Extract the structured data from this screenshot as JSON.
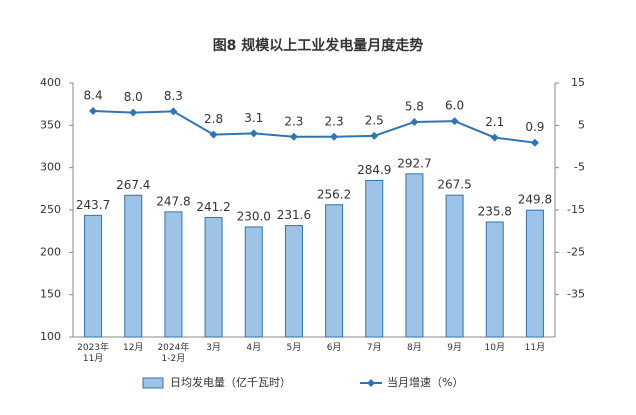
{
  "chart_data": {
    "type": "bar-line",
    "title": "图8  规模以上工业发电量月度走势",
    "categories": [
      "2023年\n11月",
      "12月",
      "2024年\n1-2月",
      "3月",
      "4月",
      "5月",
      "6月",
      "7月",
      "8月",
      "9月",
      "10月",
      "11月"
    ],
    "series": [
      {
        "name": "日均发电量（亿千瓦时）",
        "type": "bar",
        "color": "#9dc3e6",
        "edge": "#2e75b6",
        "values": [
          243.7,
          267.4,
          247.8,
          241.2,
          230.0,
          231.6,
          256.2,
          284.9,
          292.7,
          267.5,
          235.8,
          249.8
        ],
        "value_labels": [
          "243.7",
          "267.4",
          "247.8",
          "241.2",
          "230.0",
          "231.6",
          "256.2",
          "284.9",
          "292.7",
          "267.5",
          "235.8",
          "249.8"
        ]
      },
      {
        "name": "当月增速（%）",
        "type": "line",
        "axis": "y2",
        "color": "#2e75b6",
        "values": [
          8.4,
          8.0,
          8.3,
          2.8,
          3.1,
          2.3,
          2.3,
          2.5,
          5.8,
          6.0,
          2.1,
          0.9
        ],
        "value_labels": [
          "8.4",
          "8.0",
          "8.3",
          "2.8",
          "3.1",
          "2.3",
          "2.3",
          "2.5",
          "5.8",
          "6.0",
          "2.1",
          "0.9"
        ]
      }
    ],
    "ylim": [
      100,
      400
    ],
    "yticks": [
      100,
      150,
      200,
      250,
      300,
      350,
      400
    ],
    "y2lim": [
      -45,
      15
    ],
    "y2ticks": [
      -35,
      -25,
      -15,
      -5,
      5,
      15
    ]
  }
}
